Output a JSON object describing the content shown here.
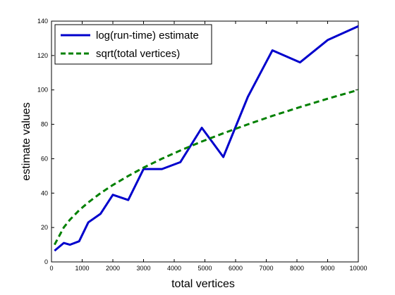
{
  "chart_data": {
    "type": "line",
    "xlabel": "total vertices",
    "ylabel": "estimate values",
    "xlim": [
      0,
      10000
    ],
    "ylim": [
      0,
      140
    ],
    "x_ticks": [
      "0",
      "1000",
      "2000",
      "3000",
      "4000",
      "5000",
      "6000",
      "7000",
      "8000",
      "9000",
      "10000"
    ],
    "y_ticks": [
      "0",
      "20",
      "40",
      "60",
      "80",
      "100",
      "120",
      "140"
    ],
    "grid": false,
    "legend_position": "top-left",
    "series": [
      {
        "name": "log(run-time) estimate",
        "color": "#0000cc",
        "style": "solid",
        "x": [
          100,
          400,
          600,
          900,
          1200,
          1600,
          2000,
          2500,
          3000,
          3600,
          4200,
          4900,
          5600,
          6400,
          7200,
          8100,
          9000,
          10000
        ],
        "y": [
          6.5,
          11,
          10,
          12,
          23,
          28,
          39,
          36,
          54,
          54,
          58,
          78,
          61,
          96,
          123,
          116,
          129,
          137
        ]
      },
      {
        "name": "sqrt(total vertices)",
        "color": "#008000",
        "style": "dashed",
        "x": [
          100,
          400,
          600,
          900,
          1200,
          1600,
          2000,
          2500,
          3000,
          3600,
          4200,
          4900,
          5600,
          6400,
          7200,
          8100,
          9000,
          10000
        ],
        "y": [
          10,
          20,
          24.5,
          30,
          34.6,
          40,
          44.7,
          50,
          54.8,
          60,
          64.8,
          70,
          74.8,
          80,
          84.9,
          90,
          94.9,
          100
        ]
      }
    ]
  }
}
